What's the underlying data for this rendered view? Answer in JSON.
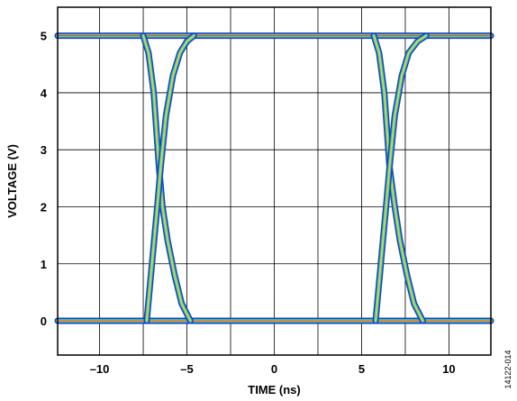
{
  "chart_data": {
    "type": "line",
    "title": "",
    "xlabel": "TIME (ns)",
    "ylabel": "VOLTAGE (V)",
    "xlim": [
      -12.4,
      12.4
    ],
    "ylim": [
      -0.6,
      5.5
    ],
    "x_ticks": [
      -10,
      -5,
      0,
      5,
      10
    ],
    "x_tick_labels": [
      "–10",
      "–5",
      "0",
      "5",
      "10"
    ],
    "y_ticks": [
      0,
      1,
      2,
      3,
      4,
      5
    ],
    "y_tick_labels": [
      "0",
      "1",
      "2",
      "3",
      "4",
      "5"
    ],
    "x_grid_lines": [
      -10,
      -7.5,
      -5,
      -2.5,
      0,
      2.5,
      5,
      7.5,
      10
    ],
    "y_grid_lines": [
      0,
      1,
      2,
      3,
      4,
      5
    ],
    "grid": true,
    "legend": "none",
    "plot_style": "eye diagram (persistence color)",
    "series": [
      {
        "kind": "high-level",
        "x": [
          -12.4,
          12.4
        ],
        "y": [
          5.0,
          5.0
        ]
      },
      {
        "kind": "low-level",
        "x": [
          -12.4,
          12.4
        ],
        "y": [
          0.0,
          0.0
        ]
      },
      {
        "kind": "falling-edge",
        "x": [
          -7.5,
          -7.2,
          -6.9,
          -6.6,
          -6.4,
          -6.1,
          -5.7,
          -5.3,
          -4.8
        ],
        "y": [
          5.0,
          4.7,
          4.0,
          2.7,
          2.0,
          1.4,
          0.8,
          0.3,
          0.0
        ]
      },
      {
        "kind": "rising-edge",
        "x": [
          -7.3,
          -7.0,
          -6.7,
          -6.5,
          -6.2,
          -5.8,
          -5.4,
          -5.0,
          -4.6
        ],
        "y": [
          0.0,
          1.0,
          2.0,
          2.7,
          3.6,
          4.3,
          4.7,
          4.9,
          5.0
        ]
      },
      {
        "kind": "falling-edge",
        "x": [
          5.7,
          6.0,
          6.3,
          6.6,
          6.9,
          7.2,
          7.6,
          8.0,
          8.5
        ],
        "y": [
          5.0,
          4.7,
          4.0,
          2.7,
          2.0,
          1.4,
          0.8,
          0.3,
          0.0
        ]
      },
      {
        "kind": "rising-edge",
        "x": [
          5.8,
          6.1,
          6.4,
          6.6,
          6.9,
          7.3,
          7.7,
          8.2,
          8.7
        ],
        "y": [
          0.0,
          1.0,
          2.0,
          2.7,
          3.6,
          4.3,
          4.7,
          4.9,
          5.0
        ]
      }
    ]
  },
  "figure_id": "14122-014",
  "colors": {
    "frame": "#000000",
    "grid": "#000000",
    "trace_outer": "#1f3fbf",
    "trace_mid": "#22c4c4",
    "trace_inner": "#d4d43a",
    "trace_hot": "#e8402a",
    "crossing": "#d040e0"
  }
}
